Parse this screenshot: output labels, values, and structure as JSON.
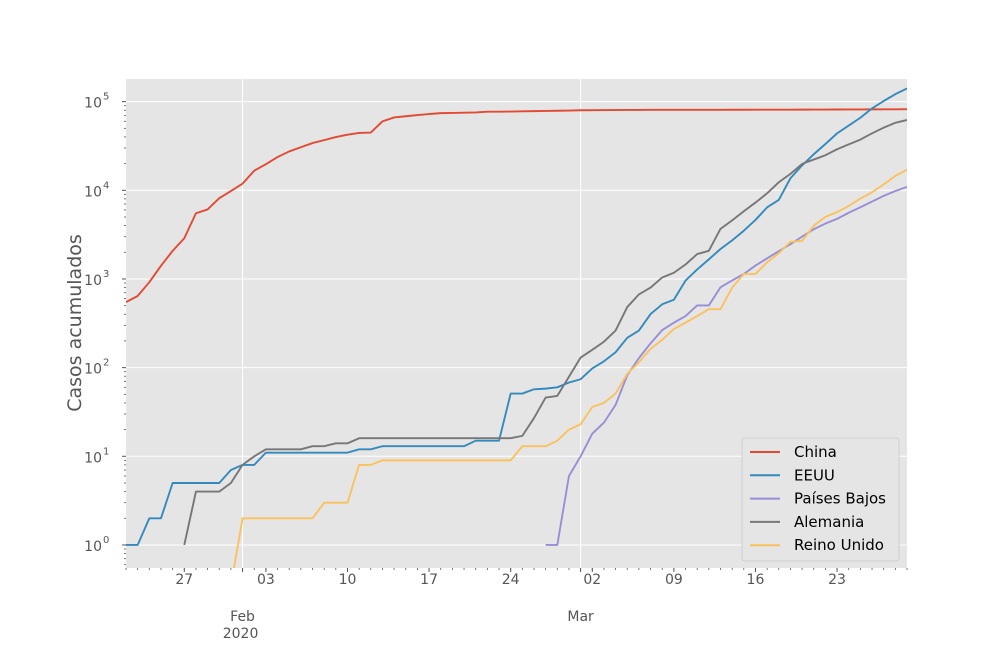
{
  "chart_data": {
    "type": "line",
    "yscale": "log",
    "title": "",
    "xlabel": "",
    "ylabel": "Casos acumulados",
    "x_start": "2020-01-22",
    "x_end": "2020-03-29",
    "ylim": [
      0.55,
      180000
    ],
    "grid": true,
    "legend_position": "lower-right",
    "y_ticks": [
      {
        "value": 1,
        "label": "10",
        "exp": "0"
      },
      {
        "value": 10,
        "label": "10",
        "exp": "1"
      },
      {
        "value": 100,
        "label": "10",
        "exp": "2"
      },
      {
        "value": 1000,
        "label": "10",
        "exp": "3"
      },
      {
        "value": 10000,
        "label": "10",
        "exp": "4"
      },
      {
        "value": 100000,
        "label": "10",
        "exp": "5"
      }
    ],
    "x_ticks": [
      {
        "day": 5,
        "label": "27"
      },
      {
        "day": 12,
        "label": "03"
      },
      {
        "day": 19,
        "label": "10"
      },
      {
        "day": 26,
        "label": "17"
      },
      {
        "day": 33,
        "label": "24"
      },
      {
        "day": 40,
        "label": "02"
      },
      {
        "day": 47,
        "label": "09"
      },
      {
        "day": 54,
        "label": "16"
      },
      {
        "day": 61,
        "label": "23"
      }
    ],
    "month_ticks": [
      {
        "day": 10,
        "label": "Feb",
        "sublabel": "2020"
      },
      {
        "day": 39,
        "label": "Mar",
        "sublabel": ""
      }
    ],
    "series": [
      {
        "name": "China",
        "color": "#E24A33",
        "start_day": 0,
        "values": [
          548,
          643,
          920,
          1406,
          2075,
          2877,
          5509,
          6087,
          8141,
          9802,
          11891,
          16630,
          19716,
          23707,
          27440,
          30587,
          34110,
          36814,
          39829,
          42354,
          44386,
          44759,
          59895,
          66358,
          68413,
          70513,
          72434,
          74211,
          74619,
          75077,
          75550,
          77001,
          77022,
          77241,
          77754,
          78166,
          78600,
          78928,
          79356,
          79932,
          80136,
          80261,
          80386,
          80537,
          80690,
          80770,
          80823,
          80860,
          80887,
          80921,
          80932,
          80945,
          80977,
          81003,
          81033,
          81058,
          81102,
          81156,
          81250,
          81305,
          81435,
          81498,
          81591,
          81661,
          81782,
          81897,
          81999,
          82122
        ]
      },
      {
        "name": "EEUU",
        "color": "#348ABD",
        "start_day": 0,
        "values": [
          1,
          1,
          2,
          2,
          5,
          5,
          5,
          5,
          5,
          7,
          8,
          8,
          11,
          11,
          11,
          11,
          11,
          11,
          11,
          11,
          12,
          12,
          13,
          13,
          13,
          13,
          13,
          13,
          13,
          13,
          15,
          15,
          15,
          51,
          51,
          57,
          58,
          60,
          68,
          74,
          98,
          118,
          149,
          217,
          262,
          402,
          518,
          583,
          959,
          1281,
          1663,
          2179,
          2727,
          3499,
          4632,
          6421,
          7783,
          13677,
          19100,
          25489,
          33276,
          43847,
          53740,
          65778,
          83836,
          101657,
          121478,
          140886
        ]
      },
      {
        "name": "Países Bajos",
        "color": "#988ED5",
        "start_day": 36,
        "values": [
          1,
          1,
          6,
          10,
          18,
          24,
          38,
          82,
          128,
          188,
          265,
          321,
          382,
          503,
          503,
          806,
          962,
          1138,
          1416,
          1711,
          2058,
          2467,
          3003,
          3640,
          4217,
          4764,
          5580,
          6438,
          7468,
          8647,
          9819,
          10930
        ]
      },
      {
        "name": "Alemania",
        "color": "#777777",
        "start_day": 5,
        "values": [
          1,
          4,
          4,
          4,
          5,
          8,
          10,
          12,
          12,
          12,
          12,
          13,
          13,
          14,
          14,
          16,
          16,
          16,
          16,
          16,
          16,
          16,
          16,
          16,
          16,
          16,
          16,
          16,
          16,
          17,
          27,
          46,
          48,
          79,
          130,
          159,
          196,
          262,
          482,
          670,
          799,
          1040,
          1176,
          1457,
          1908,
          2078,
          3675,
          4585,
          5795,
          7272,
          9257,
          12327,
          15320,
          19848,
          22213,
          24873,
          29056,
          32986,
          37323,
          43938,
          50871,
          57695,
          62095
        ]
      },
      {
        "name": "Reino Unido",
        "color": "#FBC15E",
        "start_day": 9,
        "values": [
          0.35,
          2,
          2,
          2,
          2,
          2,
          2,
          2,
          3,
          3,
          3,
          8,
          8,
          9,
          9,
          9,
          9,
          9,
          9,
          9,
          9,
          9,
          9,
          9,
          9,
          13,
          13,
          13,
          15,
          20,
          23,
          36,
          40,
          51,
          85,
          115,
          163,
          206,
          273,
          321,
          382,
          456,
          456,
          798,
          1140,
          1140,
          1543,
          1950,
          2626,
          2689,
          3983,
          5018,
          5683,
          6650,
          8077,
          9529,
          11658,
          14543,
          17089,
          19522
        ]
      }
    ]
  }
}
